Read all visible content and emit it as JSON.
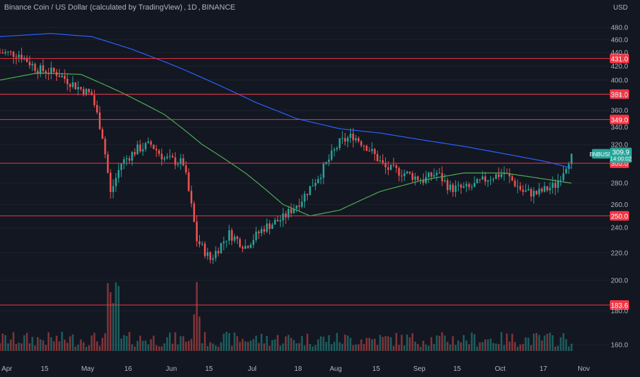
{
  "header": {
    "symbol_title": "Binance Coin / US Dollar (calculated by TradingView)",
    "interval": "1D",
    "exchange": "BINANCE",
    "currency": "USD"
  },
  "colors": {
    "background": "#131722",
    "up": "#26a69a",
    "down": "#ef5350",
    "ma_long": "#2962ff",
    "ma_short": "#4caf50",
    "level_line": "#f23645",
    "axis_text": "#b2b5be",
    "grid": "#1e222d"
  },
  "price_tag": {
    "symbol": "BNBUSD",
    "price": "309.9",
    "countdown": "14:00:02"
  },
  "chart_data": {
    "type": "candlestick",
    "x_tick_labels": [
      "Apr",
      "15",
      "May",
      "16",
      "Jun",
      "15",
      "Jul",
      "18",
      "Aug",
      "15",
      "Sep",
      "15",
      "Oct",
      "17",
      "Nov"
    ],
    "y_tick_labels": [
      480,
      460,
      440,
      420,
      400,
      380,
      360,
      340,
      320,
      300,
      280,
      260,
      240,
      220,
      200,
      180,
      160
    ],
    "y_unit": "USD",
    "y_scale": "log",
    "horizontal_levels": [
      431.0,
      381.0,
      349.0,
      300.0,
      250.0,
      183.6
    ],
    "level_labels": [
      "431.0",
      "381.0",
      "349.0",
      "300.0",
      "250.0",
      "183.6"
    ],
    "last_price": 309.9,
    "price_series": {
      "description": "Approximate daily close path of BNB/USD",
      "points": [
        [
          "Apr 1",
          440
        ],
        [
          "Apr 8",
          438
        ],
        [
          "Apr 15",
          415
        ],
        [
          "Apr 22",
          410
        ],
        [
          "Apr 29",
          392
        ],
        [
          "May 5",
          380
        ],
        [
          "May 9",
          330
        ],
        [
          "May 12",
          270
        ],
        [
          "May 16",
          300
        ],
        [
          "May 22",
          315
        ],
        [
          "May 27",
          320
        ],
        [
          "Jun 1",
          305
        ],
        [
          "Jun 8",
          300
        ],
        [
          "Jun 13",
          230
        ],
        [
          "Jun 18",
          215
        ],
        [
          "Jun 25",
          235
        ],
        [
          "Jul 1",
          225
        ],
        [
          "Jul 8",
          240
        ],
        [
          "Jul 15",
          248
        ],
        [
          "Jul 22",
          265
        ],
        [
          "Jul 29",
          290
        ],
        [
          "Aug 5",
          322
        ],
        [
          "Aug 10",
          330
        ],
        [
          "Aug 15",
          318
        ],
        [
          "Aug 22",
          295
        ],
        [
          "Aug 29",
          290
        ],
        [
          "Sep 5",
          283
        ],
        [
          "Sep 10",
          290
        ],
        [
          "Sep 15",
          275
        ],
        [
          "Sep 22",
          275
        ],
        [
          "Sep 29",
          285
        ],
        [
          "Oct 5",
          290
        ],
        [
          "Oct 12",
          272
        ],
        [
          "Oct 17",
          270
        ],
        [
          "Oct 24",
          278
        ],
        [
          "Oct 27",
          293
        ],
        [
          "Oct 30",
          309.9
        ]
      ]
    },
    "ma_long_points": [
      [
        "Apr 1",
        465
      ],
      [
        "Apr 20",
        470
      ],
      [
        "May 5",
        465
      ],
      [
        "May 20",
        445
      ],
      [
        "Jun 5",
        420
      ],
      [
        "Jun 20",
        395
      ],
      [
        "Jul 5",
        370
      ],
      [
        "Jul 20",
        350
      ],
      [
        "Aug 5",
        338
      ],
      [
        "Aug 20",
        333
      ],
      [
        "Sep 5",
        325
      ],
      [
        "Sep 20",
        318
      ],
      [
        "Oct 5",
        310
      ],
      [
        "Oct 20",
        302
      ],
      [
        "Oct 30",
        295
      ]
    ],
    "ma_short_points": [
      [
        "Apr 1",
        400
      ],
      [
        "Apr 15",
        410
      ],
      [
        "May 1",
        408
      ],
      [
        "May 15",
        385
      ],
      [
        "Jun 1",
        355
      ],
      [
        "Jun 15",
        320
      ],
      [
        "Jul 1",
        290
      ],
      [
        "Jul 15",
        260
      ],
      [
        "Jul 25",
        250
      ],
      [
        "Aug 5",
        255
      ],
      [
        "Aug 20",
        272
      ],
      [
        "Sep 5",
        283
      ],
      [
        "Sep 20",
        290
      ],
      [
        "Oct 5",
        290
      ],
      [
        "Oct 20",
        284
      ],
      [
        "Oct 30",
        280
      ]
    ],
    "volume": "bars at bottom, coloured by candle direction (no values printed)"
  }
}
